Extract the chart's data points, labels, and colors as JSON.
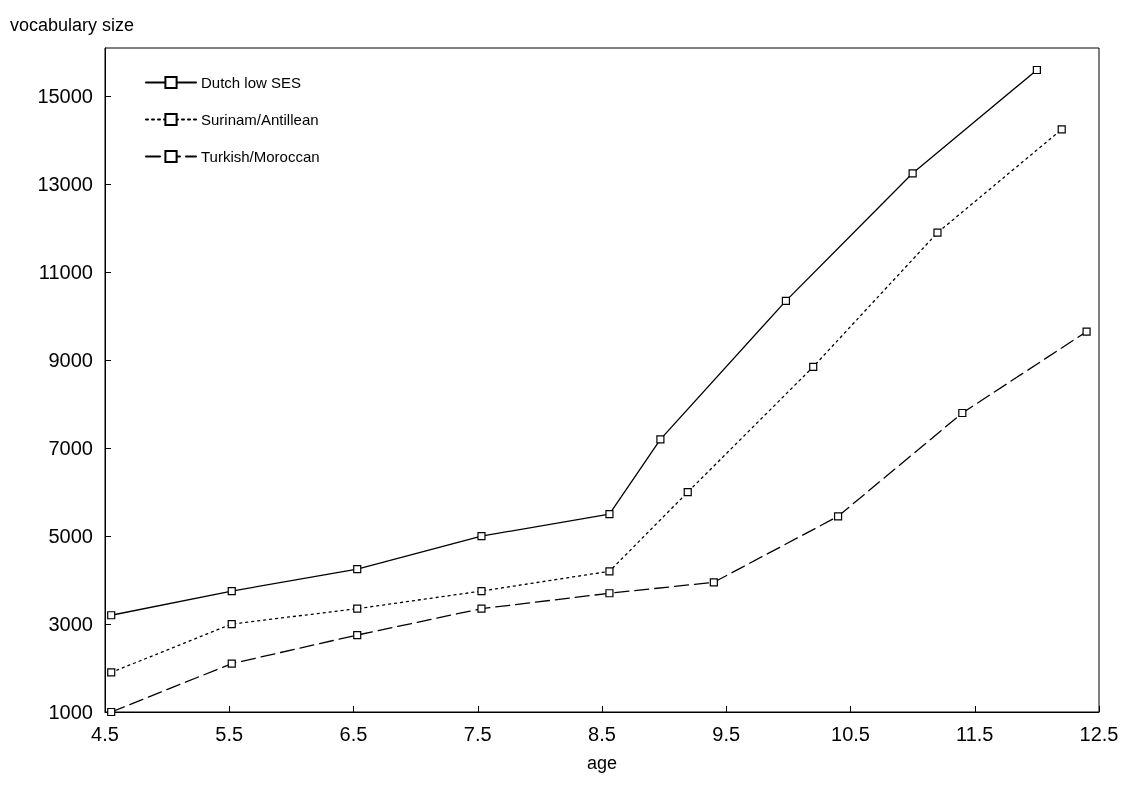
{
  "chart_data": {
    "type": "line",
    "xlabel": "age",
    "ylabel": "vocabulary size",
    "xlim": [
      4.5,
      12.5
    ],
    "xticks": [
      4.5,
      5.5,
      6.5,
      7.5,
      8.5,
      9.5,
      10.5,
      11.5,
      12.5
    ],
    "ylim": [
      1000,
      16100
    ],
    "yticks": [
      1000,
      3000,
      5000,
      7000,
      9000,
      11000,
      13000,
      15000
    ],
    "grid": false,
    "legend": "top left",
    "marker": "square",
    "series": [
      {
        "name": "Dutch low SES",
        "color": "#000000",
        "line_style": "solid",
        "x": [
          4.55,
          5.52,
          6.53,
          7.53,
          8.56,
          8.97,
          9.98,
          11.0,
          12.0
        ],
        "values": [
          3200,
          3750,
          4250,
          5000,
          5500,
          7200,
          10350,
          13250,
          15600
        ]
      },
      {
        "name": "Surinam/Antillean",
        "color": "#000000",
        "line_style": "dotted",
        "x": [
          4.55,
          5.52,
          6.53,
          7.53,
          8.56,
          9.19,
          10.2,
          11.2,
          12.2
        ],
        "values": [
          1900,
          3000,
          3350,
          3750,
          4200,
          6000,
          8850,
          11900,
          14250
        ]
      },
      {
        "name": "Turkish/Moroccan",
        "color": "#000000",
        "line_style": "dashed",
        "x": [
          4.55,
          5.52,
          6.53,
          7.53,
          8.56,
          9.4,
          10.4,
          11.4,
          12.4
        ],
        "values": [
          1000,
          2100,
          2750,
          3350,
          3700,
          3950,
          5450,
          7800,
          9650
        ]
      }
    ]
  }
}
